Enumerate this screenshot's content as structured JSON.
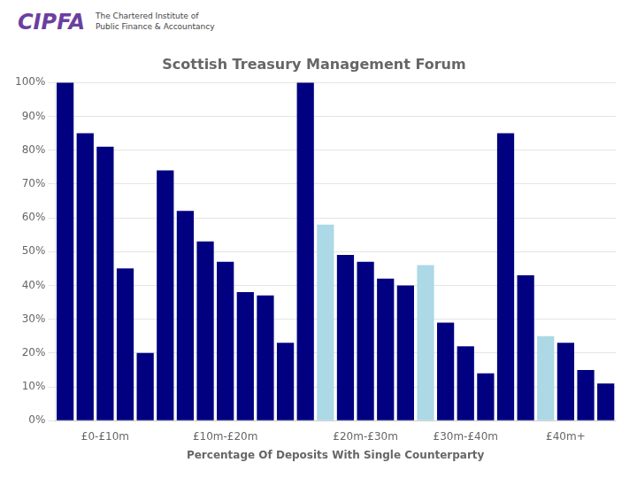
{
  "chart_data": {
    "type": "bar",
    "title": "Scottish Treasury Management Forum",
    "annotations": [
      "CIPFA",
      "The Chartered Institute of",
      "Public Finance & Accountancy"
    ],
    "xlabel": "Percentage Of Deposits With Single Counterparty",
    "categories": [
      null,
      null,
      "£0-£10m",
      null,
      null,
      null,
      null,
      null,
      "£10m-£20m",
      null,
      null,
      null,
      null,
      null,
      null,
      "£20m-£30m",
      null,
      null,
      null,
      null,
      "£30m-£40m",
      null,
      null,
      null,
      null,
      "£40m+",
      null,
      null
    ],
    "values": [
      100,
      85,
      81,
      45,
      20,
      74,
      62,
      53,
      47,
      38,
      37,
      23,
      100,
      58,
      49,
      47,
      42,
      40,
      46,
      29,
      22,
      14,
      85,
      43,
      25,
      23,
      15,
      11
    ],
    "colors": [
      "#000080",
      "#000080",
      "#000080",
      "#000080",
      "#000080",
      "#000080",
      "#000080",
      "#000080",
      "#000080",
      "#000080",
      "#000080",
      "#000080",
      "#000080",
      "#ADD8E6",
      "#000080",
      "#000080",
      "#000080",
      "#000080",
      "#ADD8E6",
      "#000080",
      "#000080",
      "#000080",
      "#000080",
      "#000080",
      "#ADD8E6",
      "#000080",
      "#000080",
      "#000080"
    ],
    "ylim": [
      0,
      100
    ],
    "yticks": [
      {
        "value": 0,
        "label": "0%"
      },
      {
        "value": 10,
        "label": "10%"
      },
      {
        "value": 20,
        "label": "20%"
      },
      {
        "value": 30,
        "label": "30%"
      },
      {
        "value": 40,
        "label": "40%"
      },
      {
        "value": 50,
        "label": "50%"
      },
      {
        "value": 60,
        "label": "60%"
      },
      {
        "value": 70,
        "label": "70%"
      },
      {
        "value": 80,
        "label": "80%"
      },
      {
        "value": 90,
        "label": "90%"
      },
      {
        "value": 100,
        "label": "100%"
      }
    ],
    "grid": true
  }
}
